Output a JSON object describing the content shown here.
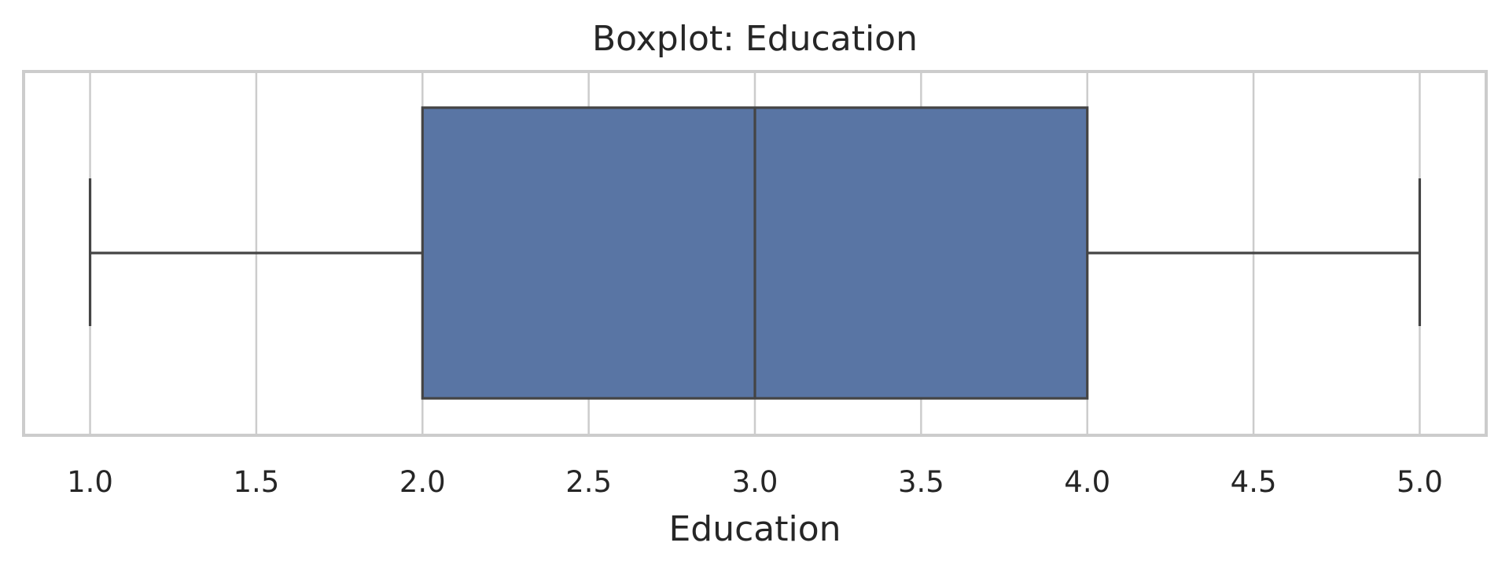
{
  "chart_data": {
    "type": "boxplot",
    "title": "Boxplot: Education",
    "xlabel": "Education",
    "ylabel": "",
    "xlim": [
      0.8,
      5.2
    ],
    "xticks": [
      1.0,
      1.5,
      2.0,
      2.5,
      3.0,
      3.5,
      4.0,
      4.5,
      5.0
    ],
    "xtick_labels": [
      "1.0",
      "1.5",
      "2.0",
      "2.5",
      "3.0",
      "3.5",
      "4.0",
      "4.5",
      "5.0"
    ],
    "orientation": "horizontal",
    "grid": "vertical",
    "box": {
      "whisker_low": 1.0,
      "q1": 2.0,
      "median": 3.0,
      "q3": 4.0,
      "whisker_high": 5.0
    },
    "colors": {
      "box_fill": "#5975a4",
      "line": "#444444",
      "grid": "#cccccc",
      "frame": "#cccccc"
    }
  }
}
